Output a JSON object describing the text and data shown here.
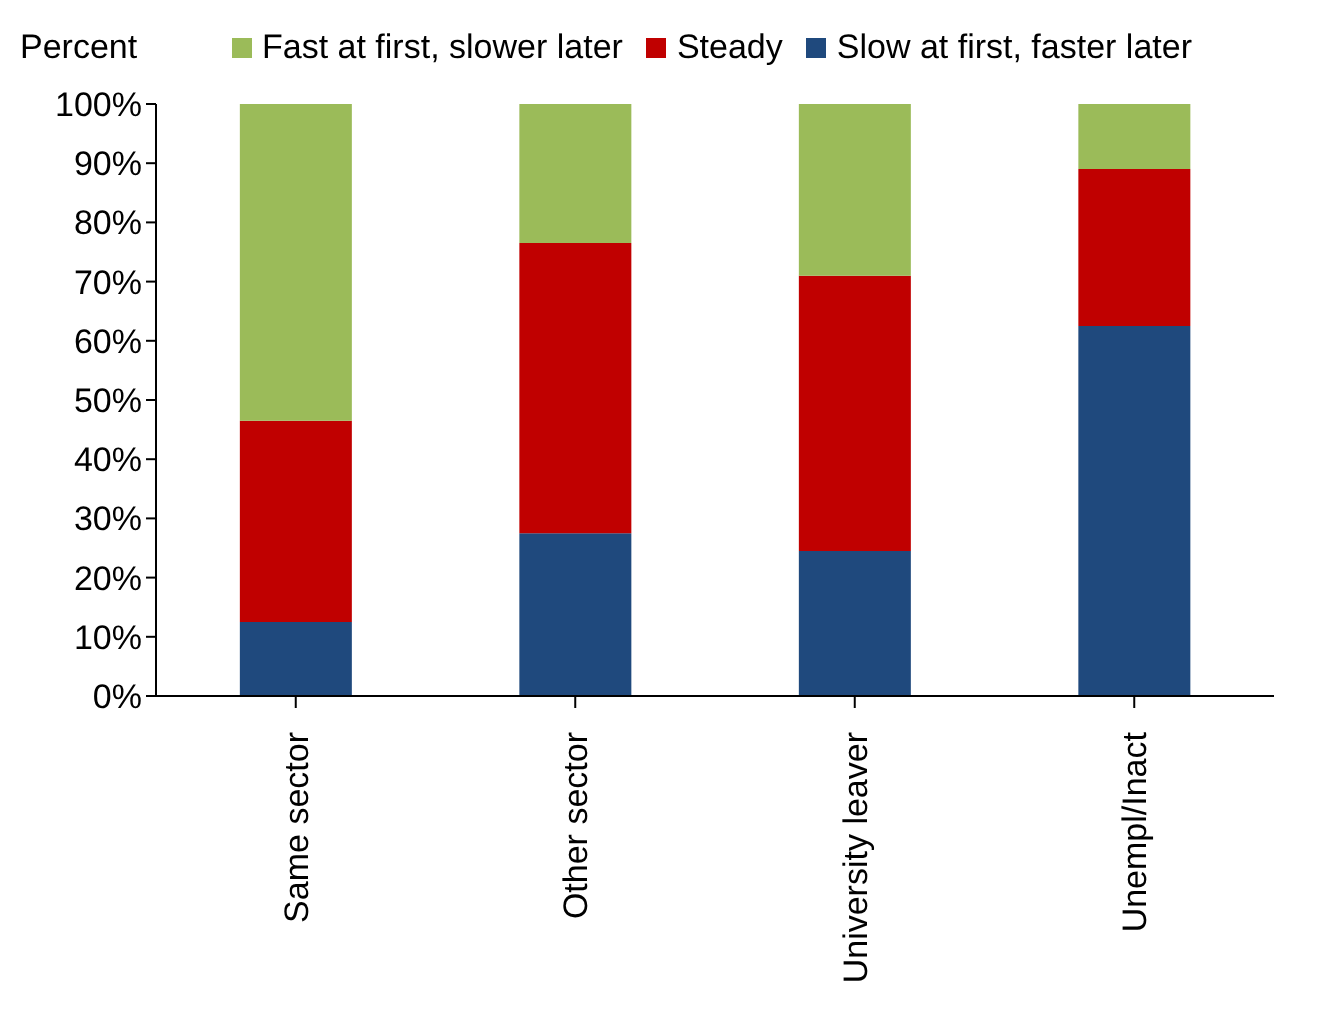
{
  "chart_data": {
    "type": "bar",
    "stacked": true,
    "ylabel": "Percent",
    "categories": [
      "Same sector",
      "Other sector",
      "University leaver",
      "Unempl/Inact"
    ],
    "series": [
      {
        "name": "Slow at first, faster later",
        "color": "#1f497d",
        "values": [
          12.5,
          27.5,
          24.5,
          62.5
        ]
      },
      {
        "name": "Steady",
        "color": "#c00000",
        "values": [
          34,
          49,
          46.5,
          26.5
        ]
      },
      {
        "name": "Fast at first, slower later",
        "color": "#9bbb59",
        "values": [
          53.5,
          23.5,
          29,
          11
        ]
      }
    ],
    "ylim": [
      0,
      100
    ],
    "yticks": [
      {
        "value": 0,
        "label": "0%"
      },
      {
        "value": 10,
        "label": "10%"
      },
      {
        "value": 20,
        "label": "20%"
      },
      {
        "value": 30,
        "label": "30%"
      },
      {
        "value": 40,
        "label": "40%"
      },
      {
        "value": 50,
        "label": "50%"
      },
      {
        "value": 60,
        "label": "60%"
      },
      {
        "value": 70,
        "label": "70%"
      },
      {
        "value": 80,
        "label": "80%"
      },
      {
        "value": 90,
        "label": "90%"
      },
      {
        "value": 100,
        "label": "100%"
      }
    ],
    "grid": false,
    "legend": "top"
  }
}
